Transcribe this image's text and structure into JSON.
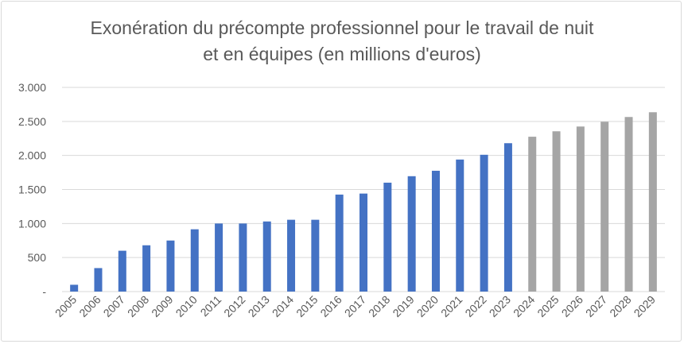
{
  "chart_data": {
    "type": "bar",
    "title": [
      "Exonération du précompte professionnel pour le travail de nuit",
      "et en équipes (en millions  d'euros)"
    ],
    "xlabel": "",
    "ylabel": "",
    "categories": [
      "2005",
      "2006",
      "2007",
      "2008",
      "2009",
      "2010",
      "2011",
      "2012",
      "2013",
      "2014",
      "2015",
      "2016",
      "2017",
      "2018",
      "2019",
      "2020",
      "2021",
      "2022",
      "2023",
      "2024",
      "2025",
      "2026",
      "2027",
      "2028",
      "2029"
    ],
    "values": [
      100,
      345,
      600,
      680,
      750,
      915,
      1000,
      1000,
      1030,
      1055,
      1055,
      1425,
      1440,
      1600,
      1695,
      1775,
      1940,
      2010,
      2180,
      2275,
      2355,
      2425,
      2495,
      2565,
      2635
    ],
    "projected_from": "2024",
    "ylim": [
      0,
      3000
    ],
    "yticks": [
      0,
      500,
      1000,
      1500,
      2000,
      2500,
      3000
    ],
    "ytick_labels": [
      "-",
      "500",
      "1.000",
      "1.500",
      "2.000",
      "2.500",
      "3.000"
    ],
    "grid": true,
    "legend": "none",
    "colors": {
      "actual": "#4472c4",
      "projected": "#a5a5a5",
      "grid": "#d9d9d9",
      "text": "#595959"
    }
  }
}
